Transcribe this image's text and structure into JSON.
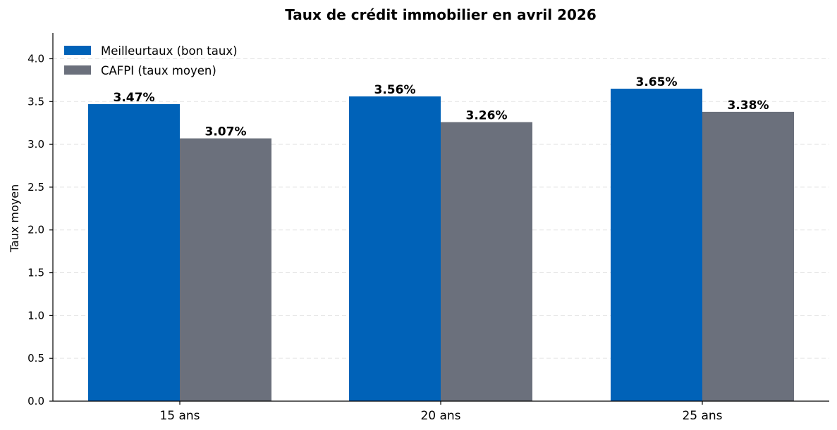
{
  "chart_data": {
    "type": "bar",
    "title": "Taux de crédit immobilier en avril 2026",
    "xlabel": "",
    "ylabel": "Taux moyen",
    "categories": [
      "15 ans",
      "20 ans",
      "25 ans"
    ],
    "series": [
      {
        "name": "Meilleurtaux (bon taux)",
        "values": [
          3.47,
          3.56,
          3.65
        ],
        "labels": [
          "3.47%",
          "3.56%",
          "3.65%"
        ],
        "color": "#0062b8"
      },
      {
        "name": "CAFPI (taux moyen)",
        "values": [
          3.07,
          3.26,
          3.38
        ],
        "labels": [
          "3.07%",
          "3.26%",
          "3.38%"
        ],
        "color": "#6b707c"
      }
    ],
    "ylim": [
      0,
      4.3
    ],
    "yticks": [
      0.0,
      0.5,
      1.0,
      1.5,
      2.0,
      2.5,
      3.0,
      3.5,
      4.0
    ],
    "ytick_labels": [
      "0.0",
      "0.5",
      "1.0",
      "1.5",
      "2.0",
      "2.5",
      "3.0",
      "3.5",
      "4.0"
    ],
    "grid": "horizontal dashed",
    "legend_position": "top-left"
  }
}
